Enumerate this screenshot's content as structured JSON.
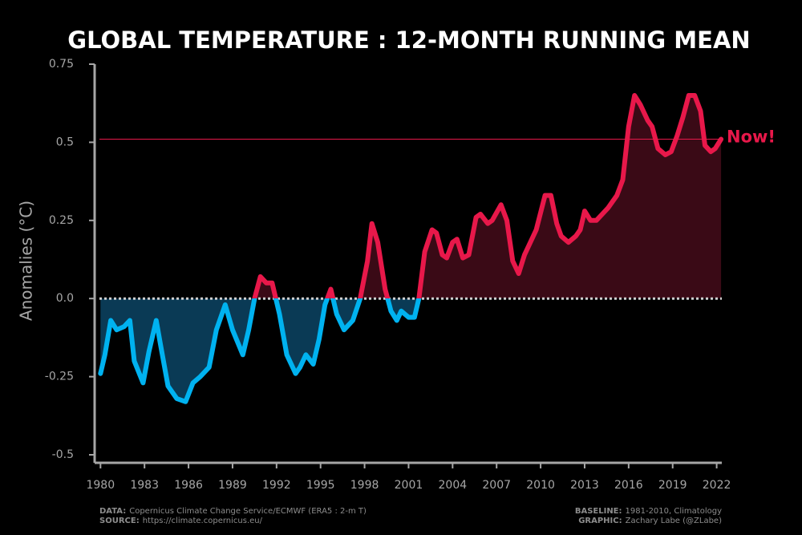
{
  "chart_data": {
    "type": "line",
    "title": "GLOBAL TEMPERATURE : 12-MONTH RUNNING MEAN",
    "y_label": "Anomalies (°C)",
    "x": [
      1980.0,
      1980.3,
      1980.7,
      1981.1,
      1981.6,
      1982.0,
      1982.3,
      1982.9,
      1983.3,
      1983.8,
      1984.1,
      1984.6,
      1985.2,
      1985.8,
      1986.3,
      1986.8,
      1987.4,
      1987.9,
      1988.5,
      1989.0,
      1989.7,
      1990.1,
      1990.5,
      1990.9,
      1991.3,
      1991.7,
      1992.2,
      1992.7,
      1993.3,
      1993.6,
      1994.0,
      1994.5,
      1994.9,
      1995.3,
      1995.7,
      1996.1,
      1996.6,
      1997.2,
      1997.7,
      1998.2,
      1998.5,
      1998.9,
      1999.4,
      1999.8,
      2000.2,
      2000.5,
      2001.0,
      2001.4,
      2001.7,
      2002.1,
      2002.6,
      2002.9,
      2003.3,
      2003.6,
      2004.0,
      2004.3,
      2004.7,
      2005.1,
      2005.6,
      2005.9,
      2006.4,
      2006.7,
      2007.3,
      2007.7,
      2008.1,
      2008.5,
      2008.9,
      2009.3,
      2009.7,
      2010.3,
      2010.7,
      2011.1,
      2011.4,
      2011.9,
      2012.4,
      2012.7,
      2013.0,
      2013.4,
      2013.8,
      2014.2,
      2014.6,
      2015.2,
      2015.6,
      2016.0,
      2016.4,
      2016.8,
      2017.3,
      2017.6,
      2018.0,
      2018.5,
      2018.9,
      2019.3,
      2019.7,
      2020.1,
      2020.5,
      2020.9,
      2021.2,
      2021.6,
      2021.9,
      2022.3
    ],
    "series": [
      {
        "name": "12-month running mean",
        "values": [
          -0.24,
          -0.18,
          -0.07,
          -0.1,
          -0.09,
          -0.07,
          -0.2,
          -0.27,
          -0.17,
          -0.07,
          -0.15,
          -0.28,
          -0.32,
          -0.33,
          -0.27,
          -0.25,
          -0.22,
          -0.1,
          -0.02,
          -0.1,
          -0.18,
          -0.1,
          0.0,
          0.07,
          0.05,
          0.05,
          -0.05,
          -0.18,
          -0.24,
          -0.22,
          -0.18,
          -0.21,
          -0.13,
          -0.02,
          0.03,
          -0.05,
          -0.1,
          -0.07,
          0.0,
          0.12,
          0.24,
          0.18,
          0.03,
          -0.04,
          -0.07,
          -0.04,
          -0.06,
          -0.06,
          0.0,
          0.15,
          0.22,
          0.21,
          0.14,
          0.13,
          0.18,
          0.19,
          0.13,
          0.14,
          0.26,
          0.27,
          0.24,
          0.25,
          0.3,
          0.25,
          0.12,
          0.08,
          0.14,
          0.18,
          0.22,
          0.33,
          0.33,
          0.24,
          0.2,
          0.18,
          0.2,
          0.22,
          0.28,
          0.25,
          0.25,
          0.27,
          0.29,
          0.33,
          0.38,
          0.55,
          0.65,
          0.62,
          0.57,
          0.55,
          0.48,
          0.46,
          0.47,
          0.52,
          0.58,
          0.65,
          0.65,
          0.6,
          0.49,
          0.47,
          0.48,
          0.51
        ]
      }
    ],
    "color_above": "#e8184a",
    "color_below": "#00b2f0",
    "fill_above": "#3a0a16",
    "fill_below": "#0a3a55",
    "xlim": [
      1979.6,
      2022.35
    ],
    "xticks": [
      1980,
      1983,
      1986,
      1989,
      1992,
      1995,
      1998,
      2001,
      2004,
      2007,
      2010,
      2013,
      2016,
      2019,
      2022
    ],
    "ylim": [
      -0.5,
      0.75
    ],
    "yticks": [
      0.75,
      0.5,
      0.25,
      {
        "value": 0,
        "label": "0.0"
      },
      -0.25,
      -0.5
    ],
    "now_line": 0.51,
    "now_label": "Now!",
    "notes_left": [
      {
        "label": "DATA:",
        "text": "Copernicus Climate Change Service/ECMWF (ERA5 : 2-m T)"
      },
      {
        "label": "SOURCE:",
        "text": "https://climate.copernicus.eu/"
      }
    ],
    "notes_right": [
      {
        "label": "BASELINE:",
        "text": "1981-2010, Climatology"
      },
      {
        "label": "GRAPHIC:",
        "text": "Zachary Labe (@ZLabe)"
      }
    ]
  }
}
